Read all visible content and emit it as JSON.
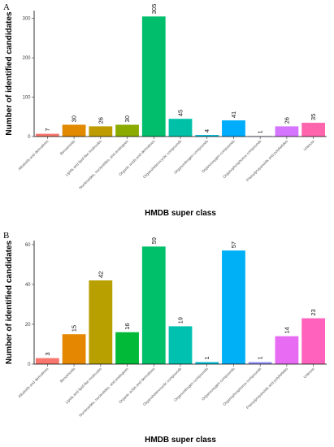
{
  "chart_data": [
    {
      "panel": "A",
      "type": "bar",
      "categories": [
        "Alkaloids and derivatives",
        "Benzenoids",
        "Lipids and lipid-like molecules",
        "Nucleosides, nucleotides, and analogues",
        "Organic acids and derivatives",
        "Organoheterocyclic compounds",
        "Organonitrogen compounds",
        "Organooxygen compounds",
        "Organophosphorus compounds",
        "Phenylpropanoids and polyketides",
        "Unknow"
      ],
      "values": [
        7,
        30,
        26,
        30,
        305,
        45,
        4,
        41,
        1,
        26,
        35
      ],
      "colors": [
        "#F8766D",
        "#E18A00",
        "#BE9C00",
        "#8CAB00",
        "#00BE6C",
        "#00C1A7",
        "#00BBDA",
        "#00ACFC",
        "#8B93FF",
        "#D575FE",
        "#FF65AC"
      ],
      "xlabel": "HMDB super class",
      "ylabel": "Number of identified candidates",
      "ylim": [
        0,
        320
      ],
      "yticks": [
        0,
        100,
        200,
        300
      ],
      "grid": false,
      "legend": "none"
    },
    {
      "panel": "B",
      "type": "bar",
      "categories": [
        "Alkaloids and derivatives",
        "Benzenoids",
        "Lipids and lipid-like molecules",
        "Nucleosides, nucleotides, and analogues",
        "Organic acids and derivatives",
        "Organoheterocyclic compounds",
        "Organonitrogen compounds",
        "Organooxygen compounds",
        "Organophosphorus compounds",
        "Phenylpropanoids and polyketides",
        "Unknow"
      ],
      "values": [
        3,
        15,
        42,
        16,
        59,
        19,
        1,
        57,
        1,
        14,
        23
      ],
      "colors": [
        "#F8766D",
        "#E58700",
        "#B8A000",
        "#00BA38",
        "#00C06A",
        "#00C0AF",
        "#00BCD8",
        "#00B0F6",
        "#9590FF",
        "#E76BF3",
        "#FF62BC"
      ],
      "xlabel": "HMDB super class",
      "ylabel": "Number of identified candidates",
      "ylim": [
        0,
        62
      ],
      "yticks": [
        0,
        20,
        40,
        60
      ],
      "grid": false,
      "legend": "none"
    }
  ]
}
